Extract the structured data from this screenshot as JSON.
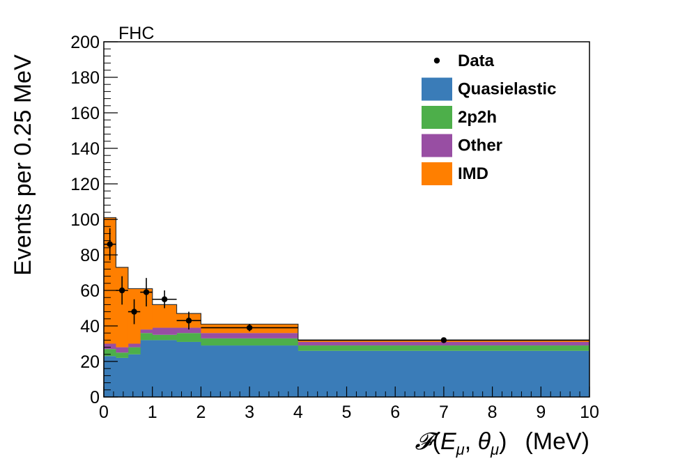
{
  "chart_data": {
    "type": "stacked-histogram",
    "tag": "FHC",
    "xlabel_parts": [
      "𝓕",
      "(",
      "E",
      "μ",
      ", ",
      "θ",
      "μ",
      ")",
      "(MeV)"
    ],
    "ylabel": "Events per 0.25 MeV",
    "xlim": [
      0,
      10
    ],
    "ylim": [
      0,
      200
    ],
    "x_ticks": [
      "0",
      "1",
      "2",
      "3",
      "4",
      "5",
      "6",
      "7",
      "8",
      "9",
      "10"
    ],
    "y_ticks": [
      "0",
      "20",
      "40",
      "60",
      "80",
      "100",
      "120",
      "140",
      "160",
      "180",
      "200"
    ],
    "bin_edges": [
      0,
      0.25,
      0.5,
      0.75,
      1.0,
      1.5,
      2.0,
      4.0,
      10.0
    ],
    "series": [
      {
        "name": "Quasielastic",
        "color": "#3a7cb8",
        "values": [
          23,
          22,
          24,
          32,
          32,
          31,
          29,
          26
        ]
      },
      {
        "name": "2p2h",
        "color": "#4daf4a",
        "values": [
          4,
          3,
          4,
          4,
          3,
          5,
          4,
          3
        ]
      },
      {
        "name": "Other",
        "color": "#984ea3",
        "values": [
          3,
          3,
          2,
          2,
          4,
          3,
          3,
          2
        ]
      },
      {
        "name": "IMD",
        "color": "#ff7f00",
        "values": [
          71,
          45,
          31,
          23,
          13,
          8,
          5,
          1
        ]
      }
    ],
    "data": {
      "name": "Data",
      "color": "#000000",
      "x": [
        0.125,
        0.375,
        0.625,
        0.875,
        1.25,
        1.75,
        3.0,
        7.0
      ],
      "y": [
        86,
        60,
        48,
        59,
        55,
        43,
        39,
        32
      ],
      "xerr": [
        0.125,
        0.125,
        0.125,
        0.125,
        0.25,
        0.25,
        1.0,
        3.0
      ],
      "yerr": [
        9,
        8,
        7,
        8,
        5,
        5,
        2,
        1
      ]
    },
    "legend": {
      "position": "top-right",
      "entries": [
        {
          "label": "Data",
          "style": "marker",
          "color": "#000000"
        },
        {
          "label": "Quasielastic",
          "style": "fill",
          "color": "#3a7cb8"
        },
        {
          "label": "2p2h",
          "style": "fill",
          "color": "#4daf4a"
        },
        {
          "label": "Other",
          "style": "fill",
          "color": "#984ea3"
        },
        {
          "label": "IMD",
          "style": "fill",
          "color": "#ff7f00"
        }
      ]
    }
  }
}
